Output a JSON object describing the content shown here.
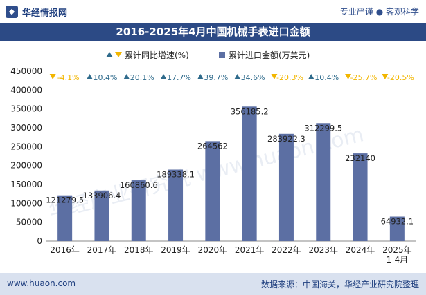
{
  "header": {
    "logo_text": "华经情报网",
    "tagline": "专业严谨 ● 客观科学"
  },
  "title": "2016-2025年4月中国机械手表进口金额",
  "footer": {
    "left": "www.huaon.com",
    "right": "数据来源：中国海关，华经产业研究院整理"
  },
  "watermark": "华经产业研究院 www.huaon.com",
  "colors": {
    "bar": "#5c6fa3",
    "up": "#2f6b8c",
    "down": "#f2b600",
    "title_bg": "#2c4a85",
    "footer_bg": "#d9e1ef"
  },
  "chart_data": {
    "type": "bar",
    "categories": [
      "2016年",
      "2017年",
      "2018年",
      "2019年",
      "2020年",
      "2021年",
      "2022年",
      "2023年",
      "2024年",
      "2025年 1-4月"
    ],
    "category_lines": [
      [
        "2016年"
      ],
      [
        "2017年"
      ],
      [
        "2018年"
      ],
      [
        "2019年"
      ],
      [
        "2020年"
      ],
      [
        "2021年"
      ],
      [
        "2022年"
      ],
      [
        "2023年"
      ],
      [
        "2024年"
      ],
      [
        "2025年",
        "1-4月"
      ]
    ],
    "series": [
      {
        "name": "累计进口金额(万美元)",
        "values": [
          121279.5,
          133906.4,
          160860.6,
          189338.1,
          264562,
          356185.2,
          283922.3,
          312299.5,
          232140,
          64932.1
        ],
        "labels": [
          "121279.5",
          "133906.4",
          "160860.6",
          "189338.1",
          "264562",
          "356185.2",
          "283922.3",
          "312299.5",
          "232140",
          "64932.1"
        ]
      },
      {
        "name": "累计同比增速(%)",
        "values": [
          -4.1,
          10.4,
          20.1,
          17.7,
          39.7,
          34.6,
          -20.3,
          10.4,
          -25.7,
          -20.5
        ],
        "labels": [
          "-4.1%",
          "10.4%",
          "20.1%",
          "17.7%",
          "39.7%",
          "34.6%",
          "-20.3%",
          "10.4%",
          "-25.7%",
          "-20.5%"
        ]
      }
    ],
    "ylim": [
      0,
      450000
    ],
    "yticks": [
      0,
      50000,
      100000,
      150000,
      200000,
      250000,
      300000,
      350000,
      400000,
      450000
    ],
    "legend_position": "top",
    "grid": false
  }
}
